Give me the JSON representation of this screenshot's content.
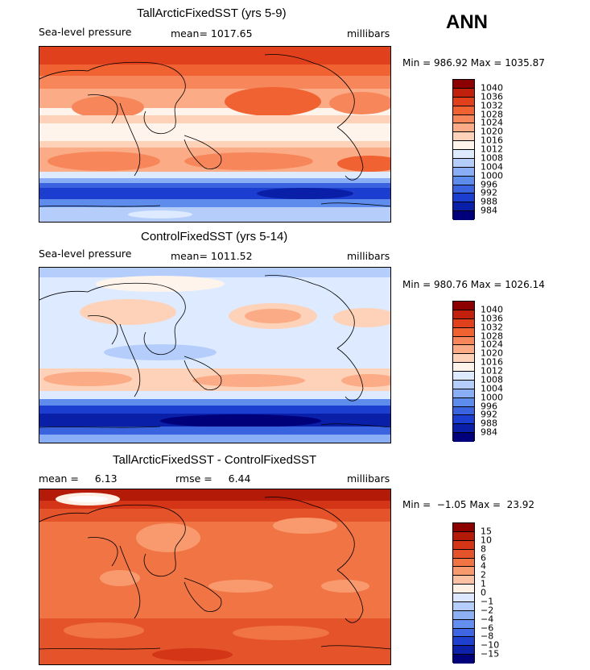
{
  "season": "ANN",
  "panels": [
    {
      "title": "TallArcticFixedSST (yrs 5-9)",
      "variable": "Sea-level pressure",
      "stat": "mean= 1017.65",
      "units": "millibars",
      "minmax": "Min = 986.92 Max = 1035.87",
      "colorbar": {
        "levels": [
          "1040",
          "1036",
          "1032",
          "1028",
          "1024",
          "1020",
          "1016",
          "1012",
          "1008",
          "1004",
          "1000",
          "996",
          "992",
          "988",
          "984"
        ],
        "colors": [
          "#8c0000",
          "#c1200d",
          "#e0401c",
          "#f06232",
          "#f7875a",
          "#fbab86",
          "#fdd2b8",
          "#fff4ec",
          "#ddeaff",
          "#b4cdfb",
          "#8aaef5",
          "#5d8cec",
          "#3a63e0",
          "#1c3ed0",
          "#0a1fa8",
          "#00007a"
        ]
      },
      "map_style": "slp_tall"
    },
    {
      "title": "ControlFixedSST (yrs 5-14)",
      "variable": "Sea-level pressure",
      "stat": "mean= 1011.52",
      "units": "millibars",
      "minmax": "Min = 980.76 Max = 1026.14",
      "colorbar": {
        "levels": [
          "1040",
          "1036",
          "1032",
          "1028",
          "1024",
          "1020",
          "1016",
          "1012",
          "1008",
          "1004",
          "1000",
          "996",
          "992",
          "988",
          "984"
        ],
        "colors": [
          "#8c0000",
          "#c1200d",
          "#e0401c",
          "#f06232",
          "#f7875a",
          "#fbab86",
          "#fdd2b8",
          "#fff4ec",
          "#ddeaff",
          "#b4cdfb",
          "#8aaef5",
          "#5d8cec",
          "#3a63e0",
          "#1c3ed0",
          "#0a1fa8",
          "#00007a"
        ]
      },
      "map_style": "slp_control"
    },
    {
      "title": "TallArcticFixedSST - ControlFixedSST",
      "stat_mean": "mean =     6.13",
      "stat_rmse": "rmse =     6.44",
      "units": "millibars",
      "minmax": "Min =  −1.05 Max =  23.92",
      "colorbar": {
        "levels": [
          "15",
          "10",
          "8",
          "6",
          "4",
          "2",
          "1",
          "0",
          "−1",
          "−2",
          "−4",
          "−6",
          "−8",
          "−10",
          "−15"
        ],
        "colors": [
          "#8c0000",
          "#b31a08",
          "#d43516",
          "#e5532a",
          "#f07444",
          "#f99a6e",
          "#fcc1a2",
          "#fff0e6",
          "#dce8ff",
          "#b5cdfb",
          "#8db0f5",
          "#648fee",
          "#3e66e2",
          "#1f40cf",
          "#0c20a8",
          "#00007a"
        ]
      },
      "map_style": "diff"
    }
  ]
}
